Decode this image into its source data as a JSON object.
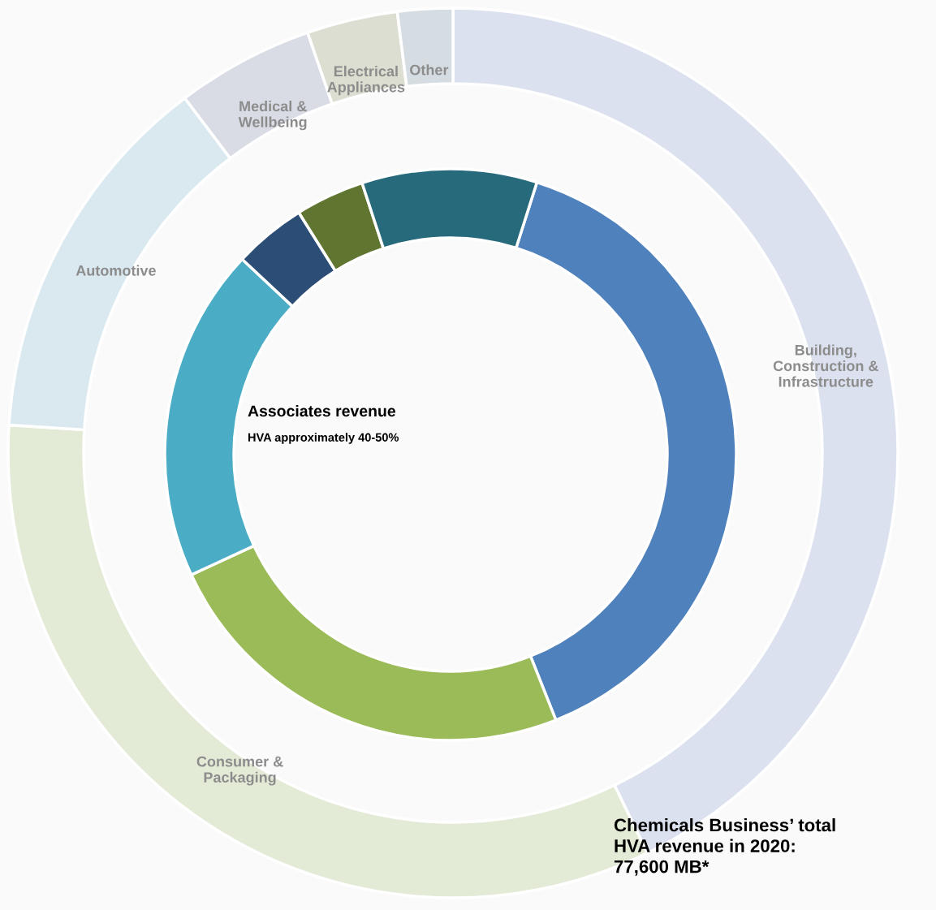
{
  "chart_data": {
    "type": "donut",
    "title": "Associates revenue",
    "subtitle": "HVA approximately 40-50%",
    "categories": [
      "Building,\nConstruction &\nInfrastructure",
      "Consumer &\nPackaging",
      "Automotive",
      "Medical &\nWellbeing",
      "Electrical\nAppliances",
      "Other"
    ],
    "series": [
      {
        "values": [
          42.8,
          33.2,
          13.7,
          5.0,
          3.3,
          2.0
        ],
        "colors": [
          "#dbe1ee",
          "#e3ead6",
          "#d9e9ef",
          "#d9dce4",
          "#dcded1",
          "#d5dde2"
        ]
      },
      {
        "values": [
          39.1,
          24.1,
          18.9,
          4.1,
          3.9,
          9.9
        ],
        "colors": [
          "#4f81bd",
          "#9bbb59",
          "#4bacc6",
          "#2c4d75",
          "#5f7530",
          "#276a7c"
        ]
      }
    ],
    "annotations": [
      "Chemicals Business’ total\nHVA revenue in 2020:\n77,600 MB*"
    ]
  }
}
